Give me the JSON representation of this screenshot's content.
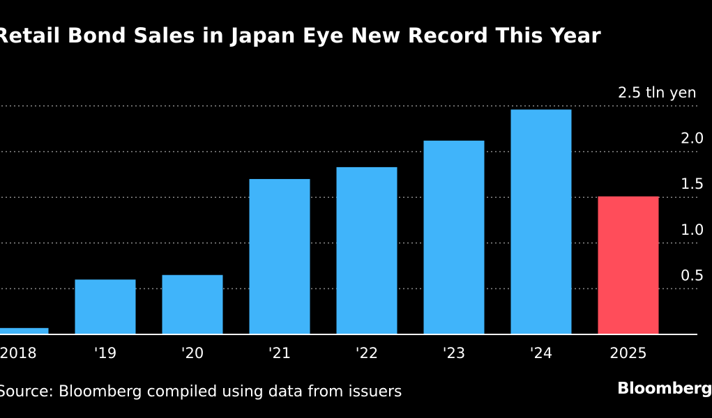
{
  "title": "Retail Bond Sales in Japan Eye New Record This Year",
  "source": "Source: Bloomberg compiled using data from issuers",
  "brand": "Bloomberg",
  "colors": {
    "background": "#000000",
    "bar_default": "#40b4fa",
    "bar_highlight": "#ff4d5a",
    "gridline": "#8a8a8a",
    "text": "#ffffff"
  },
  "chart_data": {
    "type": "bar",
    "title": "Retail Bond Sales in Japan Eye New Record This Year",
    "xlabel": "",
    "ylabel": "",
    "unit_label": "2.5 tln yen",
    "categories": [
      "2018",
      "'19",
      "'20",
      "'21",
      "'22",
      "'23",
      "'24",
      "2025"
    ],
    "values": [
      0.07,
      0.6,
      0.65,
      1.7,
      1.83,
      2.12,
      2.46,
      1.51
    ],
    "highlight_index": 7,
    "ylim": [
      0,
      2.5
    ],
    "yticks": [
      0,
      0.5,
      1.0,
      1.5,
      2.0,
      2.5
    ],
    "ytick_labels": [
      "",
      "0.5",
      "1.0",
      "1.5",
      "2.0",
      "2.5 tln yen"
    ],
    "grid": true,
    "grid_style": "dotted"
  }
}
